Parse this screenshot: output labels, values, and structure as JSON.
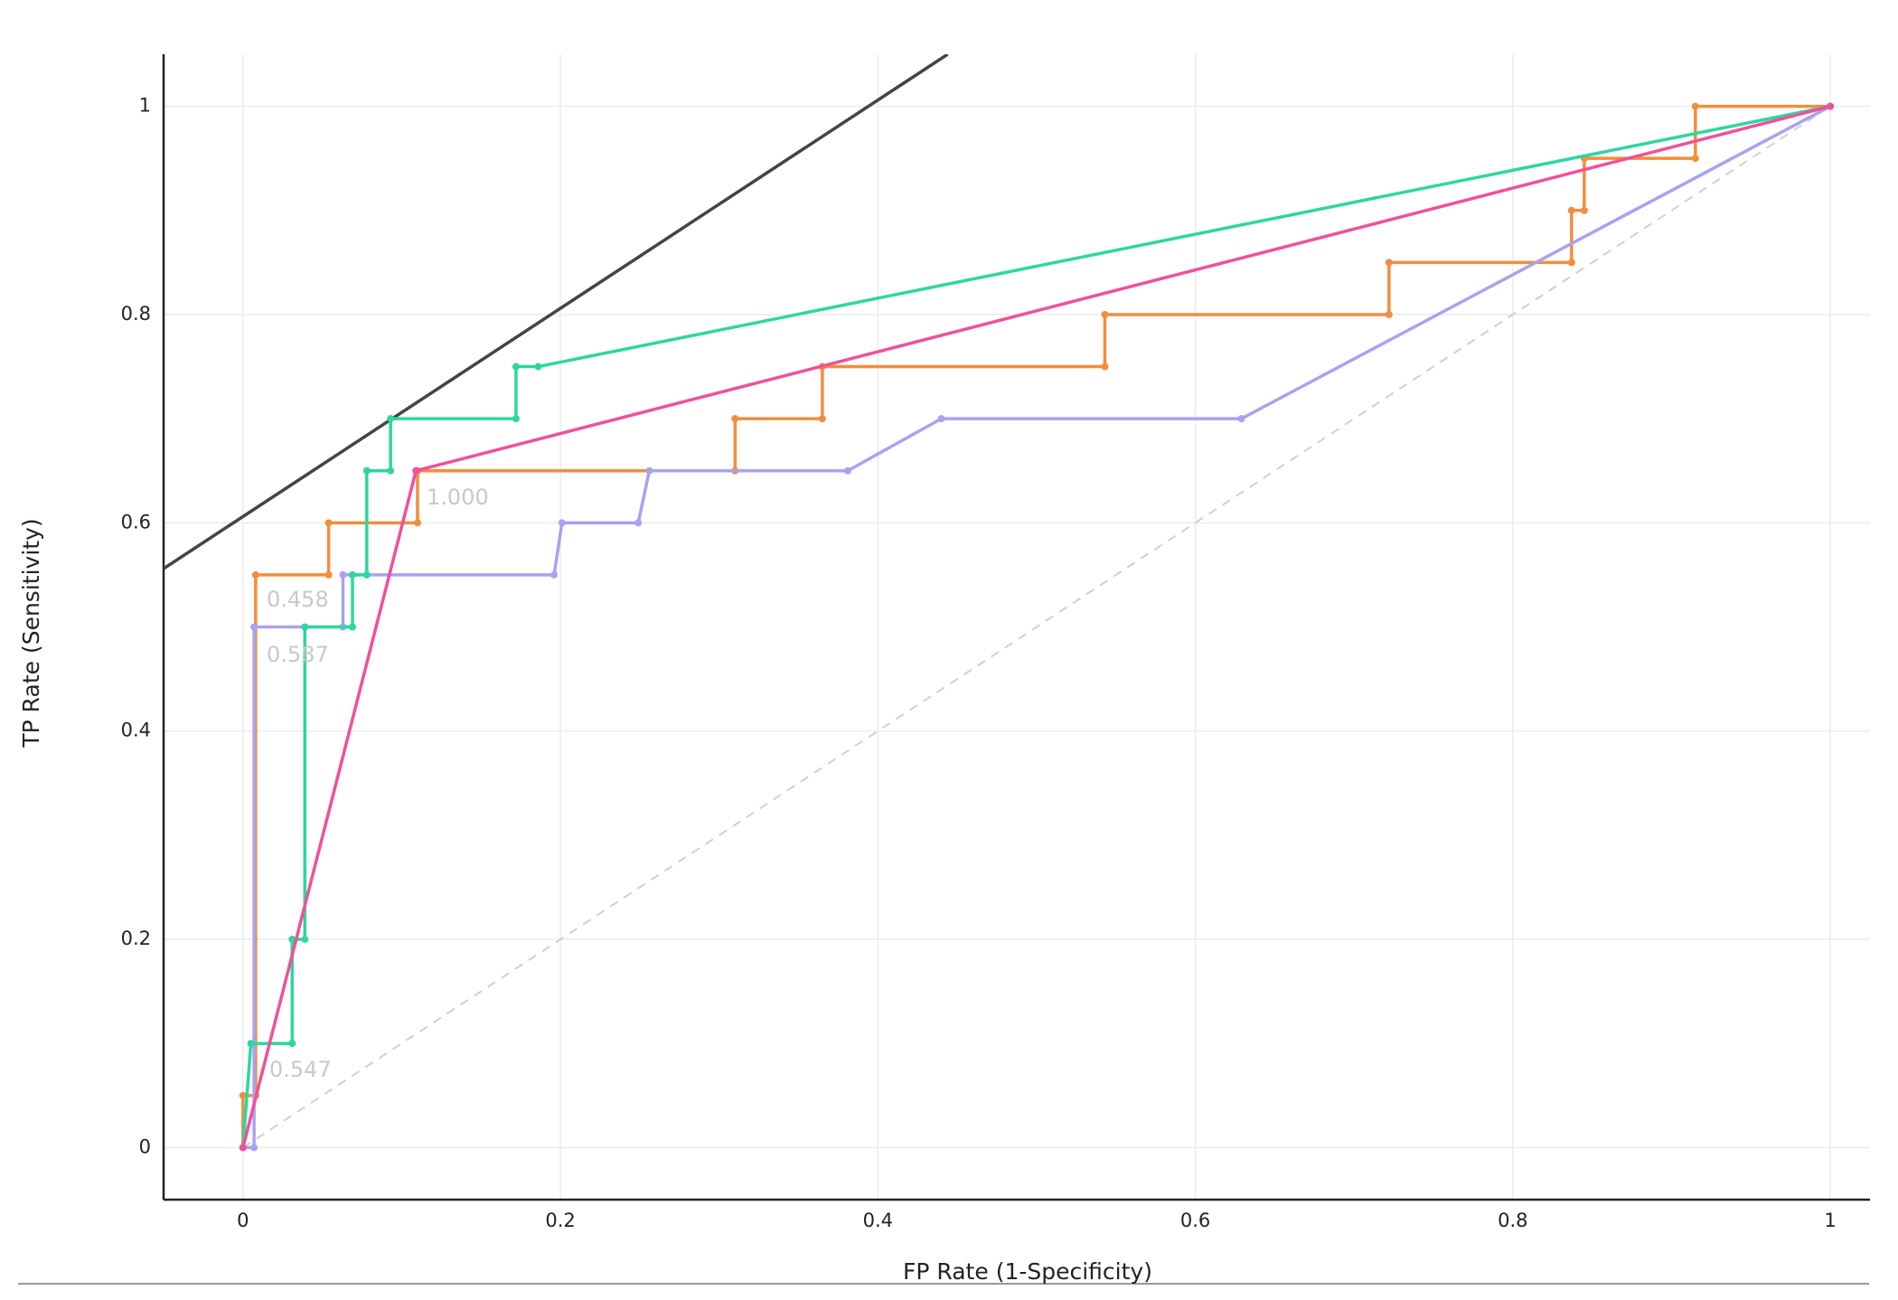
{
  "chart_data": {
    "type": "line",
    "x_label": "FP Rate (1-Specificity)",
    "y_label": "TP Rate (Sensitivity)",
    "xlim": [
      -0.05,
      1.025
    ],
    "ylim": [
      -0.05,
      1.05
    ],
    "xticks": [
      0,
      0.2,
      0.4,
      0.6,
      0.8,
      1
    ],
    "yticks": [
      0,
      0.2,
      0.4,
      0.6,
      0.8,
      1
    ],
    "grid": true,
    "annotations": [
      "1.000",
      "0.458",
      "0.587",
      "0.547"
    ],
    "series": [
      {
        "color": "#d0d0d0",
        "dashed": true,
        "markers": false,
        "x": [
          0,
          1
        ],
        "values": [
          0,
          1
        ]
      },
      {
        "color": "#444444",
        "markers": false,
        "x": [
          -0.05,
          0.444
        ],
        "values": [
          0.556,
          1.05
        ]
      },
      {
        "color": "#f28e3c",
        "markers": true,
        "x": [
          0,
          0,
          0.008,
          0.008,
          0.054,
          0.054,
          0.11,
          0.11,
          0.31,
          0.31,
          0.365,
          0.365,
          0.543,
          0.543,
          0.722,
          0.722,
          0.837,
          0.837,
          0.845,
          0.845,
          0.915,
          0.915,
          1
        ],
        "values": [
          0,
          0.05,
          0.05,
          0.55,
          0.55,
          0.6,
          0.6,
          0.65,
          0.65,
          0.7,
          0.7,
          0.75,
          0.75,
          0.8,
          0.8,
          0.85,
          0.85,
          0.9,
          0.9,
          0.95,
          0.95,
          1,
          1
        ]
      },
      {
        "color": "#a9a2f0",
        "markers": true,
        "x": [
          0,
          0.007,
          0.007,
          0.063,
          0.063,
          0.196,
          0.201,
          0.249,
          0.256,
          0.381,
          0.44,
          0.629,
          1
        ],
        "values": [
          0,
          0,
          0.5,
          0.5,
          0.55,
          0.55,
          0.6,
          0.6,
          0.65,
          0.65,
          0.7,
          0.7,
          1
        ]
      },
      {
        "color": "#2ed6a0",
        "markers": true,
        "x": [
          0,
          0.005,
          0.031,
          0.031,
          0.039,
          0.039,
          0.069,
          0.069,
          0.078,
          0.078,
          0.093,
          0.093,
          0.172,
          0.172,
          0.186,
          1
        ],
        "values": [
          0,
          0.1,
          0.1,
          0.2,
          0.2,
          0.5,
          0.5,
          0.55,
          0.55,
          0.65,
          0.65,
          0.7,
          0.7,
          0.75,
          0.75,
          1
        ]
      },
      {
        "color": "#f0509b",
        "markers": true,
        "x": [
          0,
          0.109,
          1
        ],
        "values": [
          0,
          0.65,
          1
        ]
      }
    ]
  }
}
